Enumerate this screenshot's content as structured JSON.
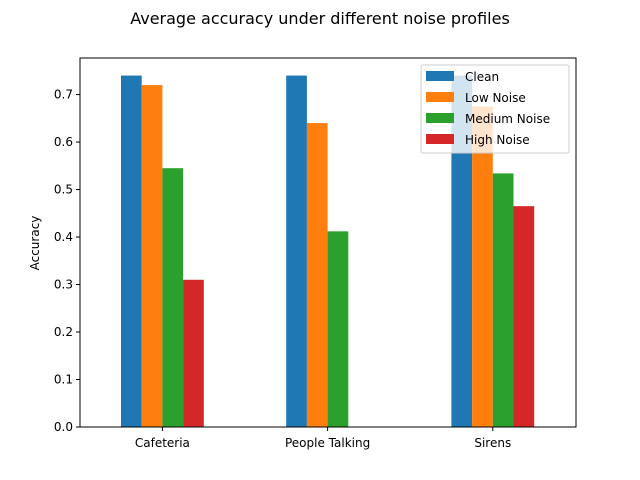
{
  "chart_data": {
    "type": "bar",
    "title": "Average accuracy under different noise profiles",
    "xlabel": "",
    "ylabel": "Accuracy",
    "categories": [
      "Cafeteria",
      "People Talking",
      "Sirens"
    ],
    "series": [
      {
        "name": "Clean",
        "color": "#1f77b4",
        "values": [
          0.74,
          0.74,
          0.74
        ]
      },
      {
        "name": "Low Noise",
        "color": "#ff7f0e",
        "values": [
          0.72,
          0.64,
          0.675
        ]
      },
      {
        "name": "Medium Noise",
        "color": "#2ca02c",
        "values": [
          0.545,
          0.412,
          0.534
        ]
      },
      {
        "name": "High Noise",
        "color": "#d62728",
        "values": [
          0.31,
          0.0,
          0.465
        ]
      }
    ],
    "ylim": [
      0.0,
      0.777
    ],
    "yticks": [
      "0.0",
      "0.1",
      "0.2",
      "0.3",
      "0.4",
      "0.5",
      "0.6",
      "0.7"
    ],
    "grid": false,
    "legend_position": "top-right"
  }
}
